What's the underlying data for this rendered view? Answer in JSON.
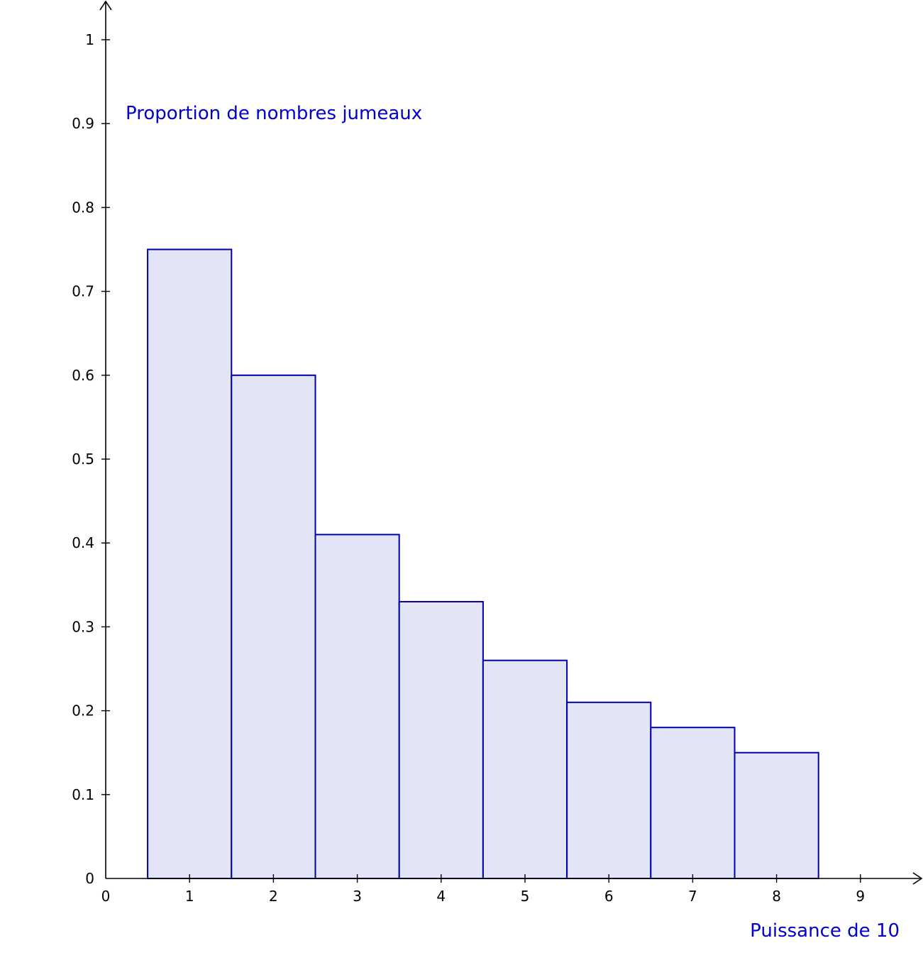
{
  "chart_data": {
    "type": "bar",
    "ylabel": "Proportion de nombres jumeaux",
    "xlabel": "Puissance de 10",
    "categories": [
      "1",
      "2",
      "3",
      "4",
      "5",
      "6",
      "7",
      "8"
    ],
    "x": [
      1,
      2,
      3,
      4,
      5,
      6,
      7,
      8
    ],
    "values": [
      0.75,
      0.6,
      0.41,
      0.33,
      0.26,
      0.21,
      0.18,
      0.15
    ],
    "bar_width": 1,
    "xlim": [
      0,
      9
    ],
    "ylim": [
      0,
      1
    ],
    "xticks": [
      0,
      1,
      2,
      3,
      4,
      5,
      6,
      7,
      8,
      9
    ],
    "xtick_labels": [
      "0",
      "1",
      "2",
      "3",
      "4",
      "5",
      "6",
      "7",
      "8",
      "9"
    ],
    "yticks": [
      0,
      0.1,
      0.2,
      0.3,
      0.4,
      0.5,
      0.6,
      0.7,
      0.8,
      0.9,
      1
    ],
    "ytick_labels": [
      "0",
      "0.1",
      "0.2",
      "0.3",
      "0.4",
      "0.5",
      "0.6",
      "0.7",
      "0.8",
      "0.9",
      "1"
    ],
    "grid": false,
    "colors": {
      "bar_fill": "#e3e4f6",
      "bar_stroke": "#0000a8",
      "label_color": "#0000cc",
      "axis_color": "#000000"
    }
  }
}
